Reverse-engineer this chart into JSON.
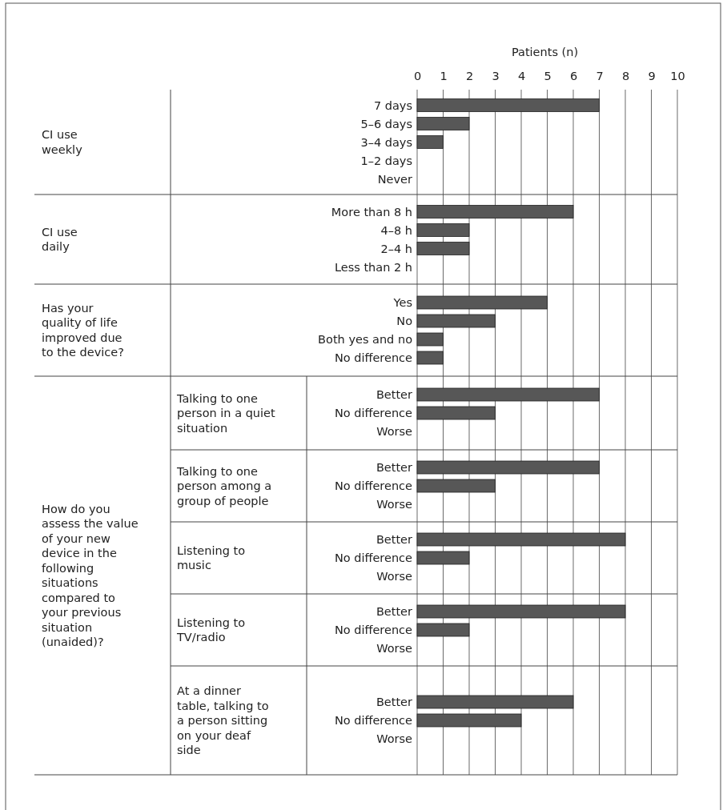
{
  "chart_data": {
    "type": "bar",
    "orientation": "horizontal",
    "xlabel": "Patients (n)",
    "xlim": [
      0,
      10
    ],
    "xticks": [
      0,
      1,
      2,
      3,
      4,
      5,
      6,
      7,
      8,
      9,
      10
    ],
    "grid": "x",
    "color": "#575757",
    "categories": [
      "7 days",
      "5–6 days",
      "3–4 days",
      "1–2 days",
      "Never",
      "More than 8 h",
      "4–8 h",
      "2–4 h",
      "Less than 2 h",
      "Yes",
      "No",
      "Both yes and no",
      "No difference",
      "Better",
      "No difference",
      "Worse",
      "Better",
      "No difference",
      "Worse",
      "Better",
      "No difference",
      "Worse",
      "Better",
      "No difference",
      "Worse",
      "Better",
      "No difference",
      "Worse"
    ],
    "values": [
      7,
      2,
      1,
      0,
      0,
      6,
      2,
      2,
      0,
      5,
      3,
      1,
      1,
      7,
      3,
      0,
      7,
      3,
      0,
      8,
      2,
      0,
      8,
      2,
      0,
      6,
      4,
      0
    ],
    "annotations": [
      "CI use\nweekly",
      "CI use\ndaily",
      "Has your\nquality of life\nimproved due\nto the device?",
      "How do you\nassess the value\nof your new\ndevice in the\nfollowing\nsituations\ncompared to\nyour previous\nsituation\n(unaided)?",
      "Talking to one\nperson in a quiet\nsituation",
      "Talking to one\nperson among a\ngroup of people",
      "Listening to\nmusic",
      "Listening to\nTV/radio",
      "At a dinner\ntable, talking to\na person sitting\non your deaf\nside"
    ]
  }
}
